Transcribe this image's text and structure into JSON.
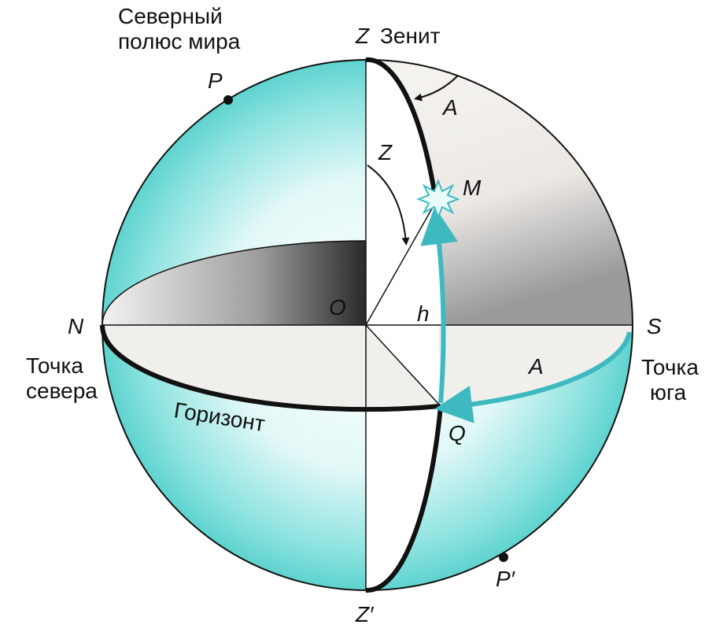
{
  "labels": {
    "north_pole": [
      "Северный",
      "полюс мира"
    ],
    "zenith_letter": "Z",
    "zenith": "Зенит",
    "pole": "P",
    "azimuth_top": "A",
    "zenith_angle": "Z",
    "star": "M",
    "center": "O",
    "altitude": "h",
    "north": "N",
    "south": "S",
    "north_point": [
      "Точка",
      "севера"
    ],
    "south_point": [
      "Точка",
      "юга"
    ],
    "azimuth_bottom": "A",
    "horizon": "Горизонт",
    "q": "Q",
    "pole_south": "P′",
    "nadir": "Z′"
  }
}
